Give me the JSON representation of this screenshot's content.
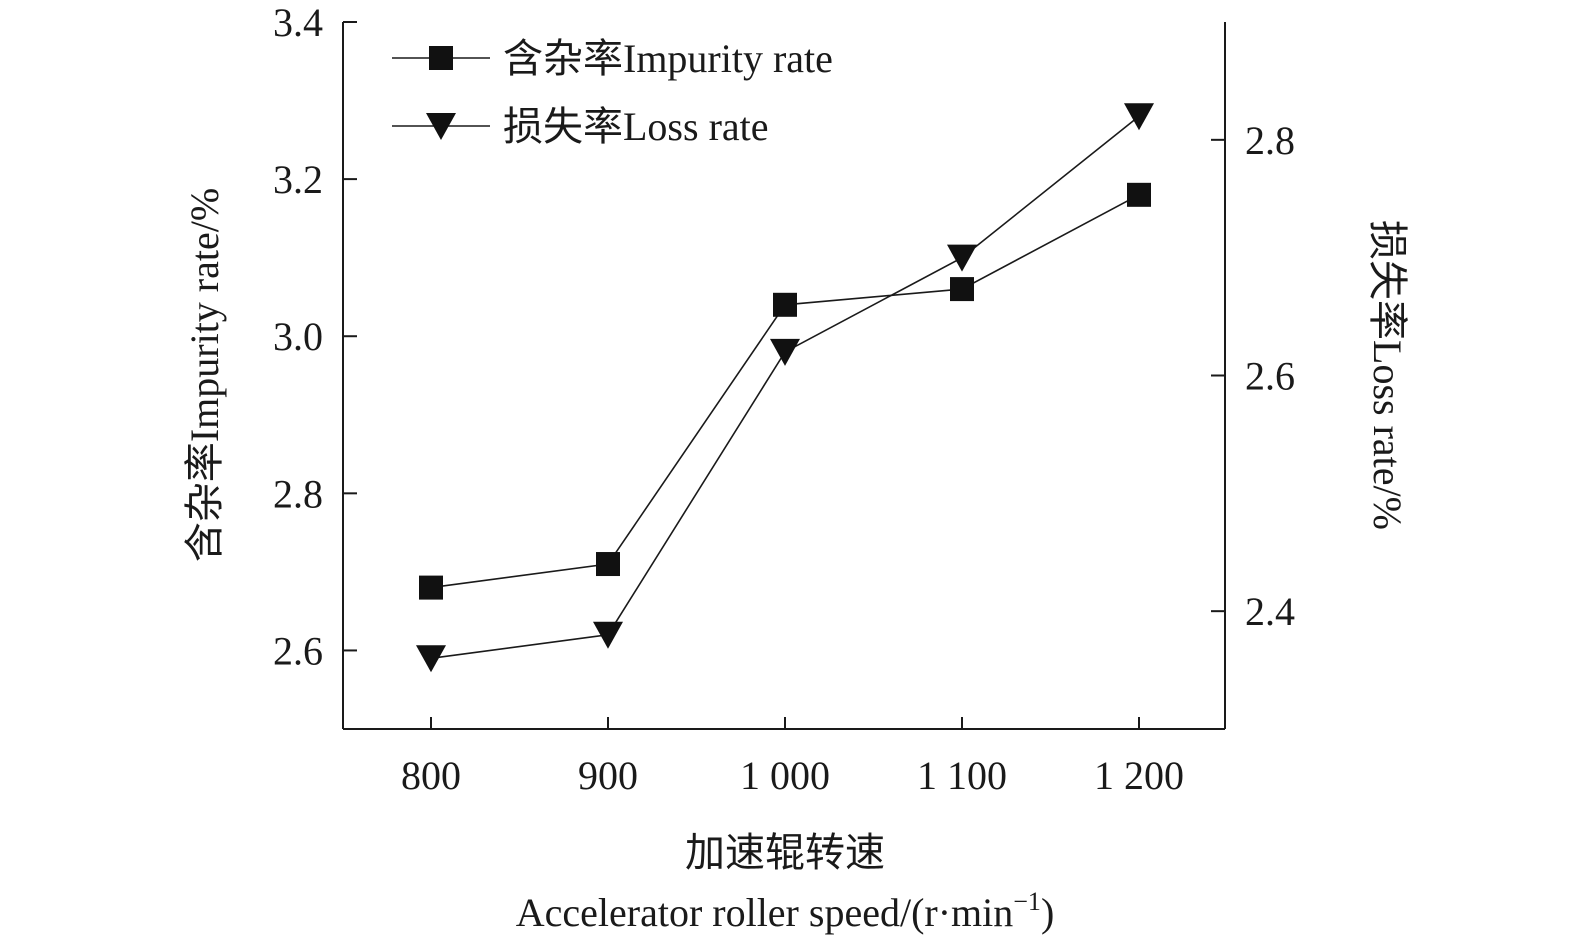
{
  "chart_data": {
    "type": "line",
    "dual_axis": true,
    "categories": [
      "800",
      "900",
      "1 000",
      "1 100",
      "1 200"
    ],
    "x": [
      800,
      900,
      1000,
      1100,
      1200
    ],
    "series": [
      {
        "name": "含杂率Impurity rate",
        "axis": "left",
        "marker": "square",
        "values": [
          2.68,
          2.71,
          3.04,
          3.06,
          3.18
        ]
      },
      {
        "name": "损失率Loss rate",
        "axis": "right",
        "marker": "triangle-down",
        "values": [
          2.36,
          2.38,
          2.62,
          2.7,
          2.82
        ]
      }
    ],
    "xlabel_cn": "加速辊转速",
    "xlabel_en": "Accelerator roller speed/(r·min",
    "xlabel_sup": "−1",
    "xlabel_end": ")",
    "ylabel_left": "含杂率Impurity rate/%",
    "ylabel_right": "损失率Loss rate/%",
    "ylim_left": [
      2.5,
      3.4
    ],
    "ylim_right": [
      2.3,
      2.9
    ],
    "yticks_left": [
      "2.6",
      "2.8",
      "3.0",
      "3.2",
      "3.4"
    ],
    "yticks_right": [
      "2.4",
      "2.6",
      "2.8"
    ],
    "grid": false,
    "legend_position": "top-left",
    "colors": {
      "line": "#1a1a1a",
      "marker": "#111111"
    }
  }
}
